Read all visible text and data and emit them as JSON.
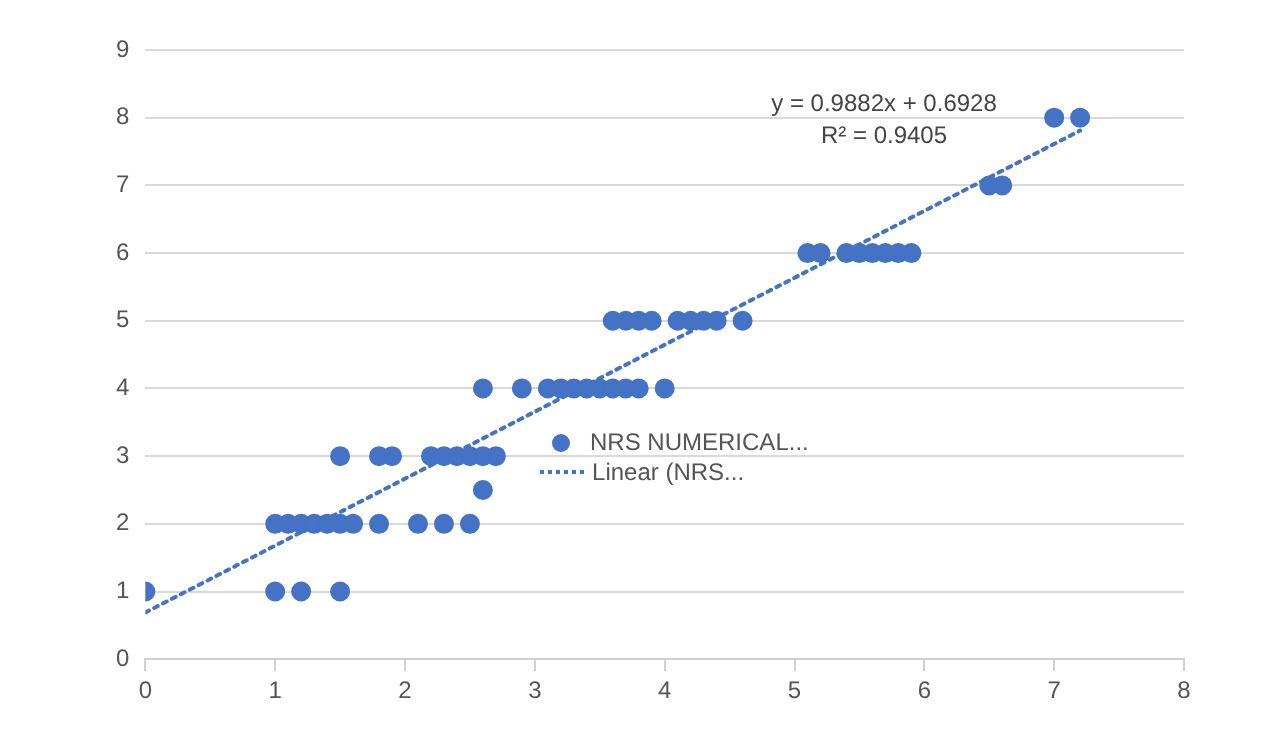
{
  "chart_data": {
    "type": "scatter",
    "xlim": [
      0,
      8
    ],
    "xticks": [
      0,
      1,
      2,
      3,
      4,
      5,
      6,
      7,
      8
    ],
    "ylim": [
      0,
      9
    ],
    "yticks": [
      0,
      1,
      2,
      3,
      4,
      5,
      6,
      7,
      8,
      9
    ],
    "grid": "y",
    "legend": "center",
    "marker": "circle",
    "series": [
      {
        "name": "NRS NUMERICAL...",
        "color": "#4472c4",
        "x": [
          0,
          1.0,
          1.2,
          1.5,
          1.0,
          1.1,
          1.2,
          1.3,
          1.4,
          1.5,
          1.6,
          1.8,
          2.1,
          2.3,
          2.5,
          2.6,
          1.5,
          1.8,
          1.9,
          2.2,
          2.3,
          2.4,
          2.5,
          2.6,
          2.7,
          2.6,
          2.9,
          3.1,
          3.2,
          3.3,
          3.4,
          3.5,
          3.6,
          3.7,
          3.8,
          4.0,
          3.6,
          3.7,
          3.8,
          3.9,
          4.1,
          4.2,
          4.3,
          4.4,
          4.6,
          5.1,
          5.2,
          5.4,
          5.5,
          5.6,
          5.7,
          5.8,
          5.9,
          6.5,
          6.6,
          7.0,
          7.2
        ],
        "values": [
          1,
          1,
          1,
          1,
          2,
          2,
          2,
          2,
          2,
          2,
          2,
          2,
          2,
          2,
          2,
          2.5,
          3,
          3,
          3,
          3,
          3,
          3,
          3,
          3,
          3,
          4,
          4,
          4,
          4,
          4,
          4,
          4,
          4,
          4,
          4,
          4,
          5,
          5,
          5,
          5,
          5,
          5,
          5,
          5,
          5,
          6,
          6,
          6,
          6,
          6,
          6,
          6,
          6,
          7,
          7,
          8,
          8
        ]
      },
      {
        "name": "Linear (NRS...",
        "type": "line",
        "color": "#4472c4",
        "line_style": "dotted",
        "marker": "none",
        "x": [
          0,
          7.2
        ],
        "values": [
          0.69,
          7.81
        ]
      }
    ],
    "annotations": [
      "y = 0.9882x + 0.6928",
      "R² = 0.9405"
    ]
  }
}
